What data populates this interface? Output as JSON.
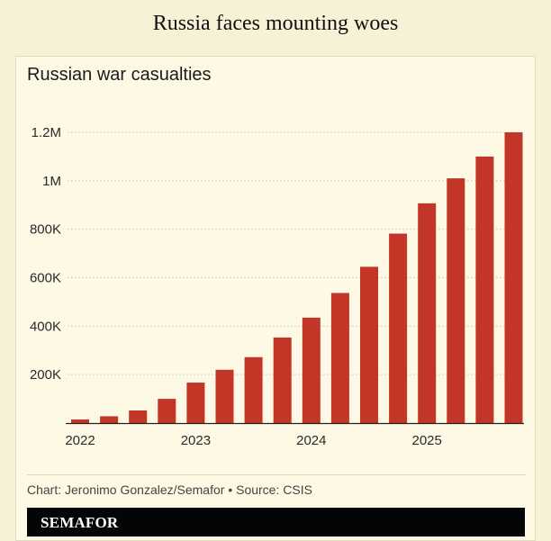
{
  "headline": "Russia faces mounting woes",
  "credit": "Chart: Jeronimo Gonzalez/Semafor • Source: CSIS",
  "brand": "SEMAFOR",
  "colors": {
    "bar": "#c23527",
    "background": "#f7f1d6",
    "card": "#fdf9e5",
    "brand_bar": "#050505"
  },
  "chart_data": {
    "type": "bar",
    "title": "Russian war casualties",
    "xlabel": "",
    "ylabel": "",
    "ylim": [
      0,
      1200000
    ],
    "grid": true,
    "yticks": [
      {
        "value": 200000,
        "label": "200K"
      },
      {
        "value": 400000,
        "label": "400K"
      },
      {
        "value": 600000,
        "label": "600K"
      },
      {
        "value": 800000,
        "label": "800K"
      },
      {
        "value": 1000000,
        "label": "1M"
      },
      {
        "value": 1200000,
        "label": "1.2M"
      }
    ],
    "xticks": [
      {
        "index": 0,
        "label": "2022"
      },
      {
        "index": 4,
        "label": "2023"
      },
      {
        "index": 8,
        "label": "2024"
      },
      {
        "index": 12,
        "label": "2025"
      }
    ],
    "values": [
      15000,
      28000,
      52000,
      100000,
      167000,
      220000,
      272000,
      353000,
      435000,
      537000,
      645000,
      782000,
      907000,
      1010000,
      1100000,
      1200000
    ]
  }
}
